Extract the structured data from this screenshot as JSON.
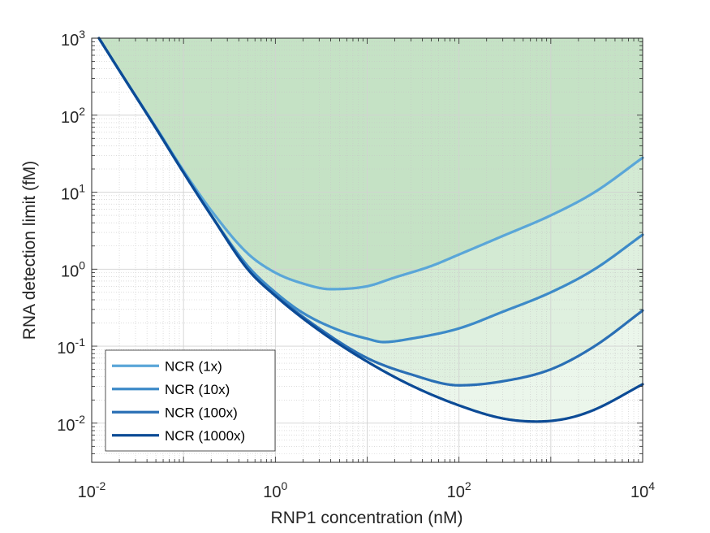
{
  "chart_data": {
    "type": "line",
    "title": "",
    "xlabel": "RNP1 concentration (nM)",
    "ylabel": "RNA detection limit (fM)",
    "x_scale": "log",
    "y_scale": "log",
    "xlim": [
      0.01,
      10000
    ],
    "ylim": [
      0.0031,
      1000
    ],
    "x_ticks": [
      {
        "value": 0.01,
        "base": "10",
        "exp": "-2"
      },
      {
        "value": 1,
        "base": "10",
        "exp": "0"
      },
      {
        "value": 100,
        "base": "10",
        "exp": "2"
      },
      {
        "value": 10000,
        "base": "10",
        "exp": "4"
      }
    ],
    "y_ticks": [
      {
        "value": 0.01,
        "base": "10",
        "exp": "-2"
      },
      {
        "value": 0.1,
        "base": "10",
        "exp": "-1"
      },
      {
        "value": 1,
        "base": "10",
        "exp": "0"
      },
      {
        "value": 10,
        "base": "10",
        "exp": "1"
      },
      {
        "value": 100,
        "base": "10",
        "exp": "2"
      },
      {
        "value": 1000,
        "base": "10",
        "exp": "3"
      }
    ],
    "grid": true,
    "minor_grid": true,
    "legend_position": "bottom-left",
    "shaded_regions": [
      {
        "bounded_by": "NCR (1x)",
        "color": "#c5e2c5"
      },
      {
        "bounded_by": "NCR (10x)",
        "color": "#d3ead3"
      },
      {
        "bounded_by": "NCR (100x)",
        "color": "#dff0df"
      },
      {
        "bounded_by": "NCR (1000x)",
        "color": "#ebf6eb"
      }
    ],
    "series": [
      {
        "name": "NCR (1x)",
        "color": "#5aa6d8",
        "x": [
          0.012,
          0.02,
          0.05,
          0.1,
          0.2,
          0.5,
          1,
          2,
          4,
          10,
          20,
          50,
          100,
          300,
          1000,
          3000,
          10000
        ],
        "y": [
          1000,
          380,
          70,
          19,
          5.8,
          1.6,
          0.9,
          0.65,
          0.55,
          0.6,
          0.78,
          1.1,
          1.55,
          2.7,
          5,
          10,
          28
        ]
      },
      {
        "name": "NCR (10x)",
        "color": "#3d8ac8",
        "x": [
          0.012,
          0.02,
          0.05,
          0.1,
          0.2,
          0.5,
          1,
          2,
          5,
          10,
          15,
          30,
          100,
          300,
          1000,
          3000,
          10000
        ],
        "y": [
          1000,
          380,
          68,
          18,
          5,
          1.1,
          0.5,
          0.27,
          0.16,
          0.125,
          0.113,
          0.125,
          0.17,
          0.28,
          0.5,
          1,
          2.8
        ]
      },
      {
        "name": "NCR (100x)",
        "color": "#2a6fb5",
        "x": [
          0.012,
          0.02,
          0.05,
          0.1,
          0.2,
          0.5,
          1,
          3,
          10,
          30,
          100,
          300,
          1000,
          3000,
          10000
        ],
        "y": [
          1000,
          380,
          68,
          18,
          5,
          1,
          0.46,
          0.17,
          0.07,
          0.043,
          0.031,
          0.035,
          0.05,
          0.1,
          0.29
        ]
      },
      {
        "name": "NCR (1000x)",
        "color": "#0c4b96",
        "x": [
          0.012,
          0.02,
          0.05,
          0.1,
          0.2,
          0.5,
          1,
          3,
          10,
          30,
          100,
          300,
          700,
          1500,
          3000,
          10000
        ],
        "y": [
          1000,
          380,
          68,
          18,
          5,
          1,
          0.45,
          0.16,
          0.063,
          0.031,
          0.017,
          0.0115,
          0.0105,
          0.0115,
          0.015,
          0.032
        ]
      }
    ]
  }
}
